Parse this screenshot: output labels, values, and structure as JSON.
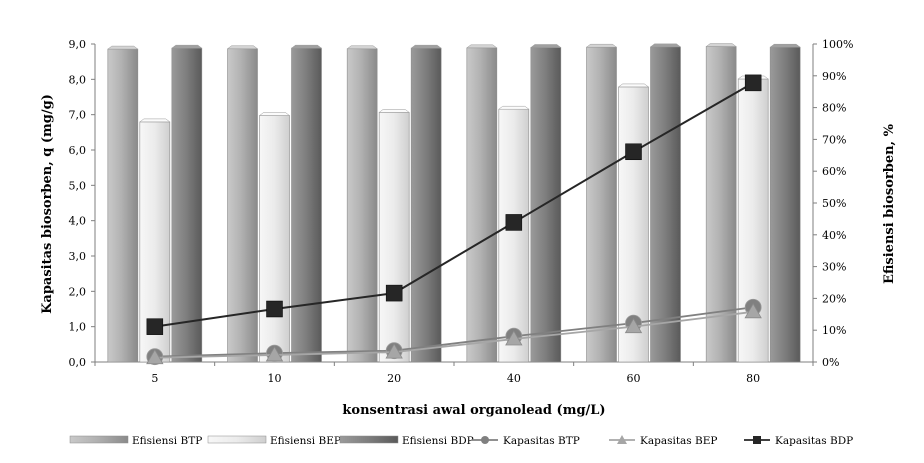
{
  "chart_data": {
    "type": "bar",
    "categories": [
      "5",
      "10",
      "20",
      "40",
      "60",
      "80"
    ],
    "xlabel": "konsentrasi awal organolead (mg/L)",
    "ylabel_left": "Kapasitas biosorben, q (mg/g)",
    "ylabel_right": "Efisiensi biosorben, %",
    "ylim_left": [
      0,
      9
    ],
    "ylim_right": [
      0,
      100
    ],
    "left_ticks": [
      "0,0",
      "1,0",
      "2,0",
      "3,0",
      "4,0",
      "5,0",
      "6,0",
      "7,0",
      "8,0",
      "9,0"
    ],
    "right_ticks": [
      "0%",
      "10%",
      "20%",
      "30%",
      "40%",
      "50%",
      "60%",
      "70%",
      "80%",
      "90%",
      "100%"
    ],
    "bar_series": [
      {
        "name": "Efisiensi BTP",
        "axis": "right",
        "color": "#a6a6a6",
        "values": [
          98.4,
          98.5,
          98.5,
          98.8,
          99.0,
          99.2
        ]
      },
      {
        "name": "Efisiensi BEP",
        "axis": "right",
        "color": "#e3e3e3",
        "values": [
          75.5,
          77.5,
          78.5,
          79.5,
          86.5,
          89.0
        ]
      },
      {
        "name": "Efisiensi BDP",
        "axis": "right",
        "color": "#808080",
        "values": [
          98.7,
          98.7,
          98.7,
          98.9,
          99.1,
          99.0
        ]
      }
    ],
    "line_series": [
      {
        "name": "Kapasitas BTP",
        "axis": "left",
        "marker": "circle",
        "color": "#808080",
        "values": [
          0.15,
          0.25,
          0.32,
          0.73,
          1.1,
          1.55
        ]
      },
      {
        "name": "Kapasitas BEP",
        "axis": "left",
        "marker": "triangle",
        "color": "#a6a6a6",
        "values": [
          0.12,
          0.2,
          0.28,
          0.65,
          1.0,
          1.42
        ]
      },
      {
        "name": "Kapasitas BDP",
        "axis": "left",
        "marker": "square",
        "color": "#262626",
        "values": [
          1.0,
          1.5,
          1.95,
          3.95,
          5.95,
          7.9
        ]
      }
    ],
    "legend_position": "bottom",
    "grid": false
  }
}
